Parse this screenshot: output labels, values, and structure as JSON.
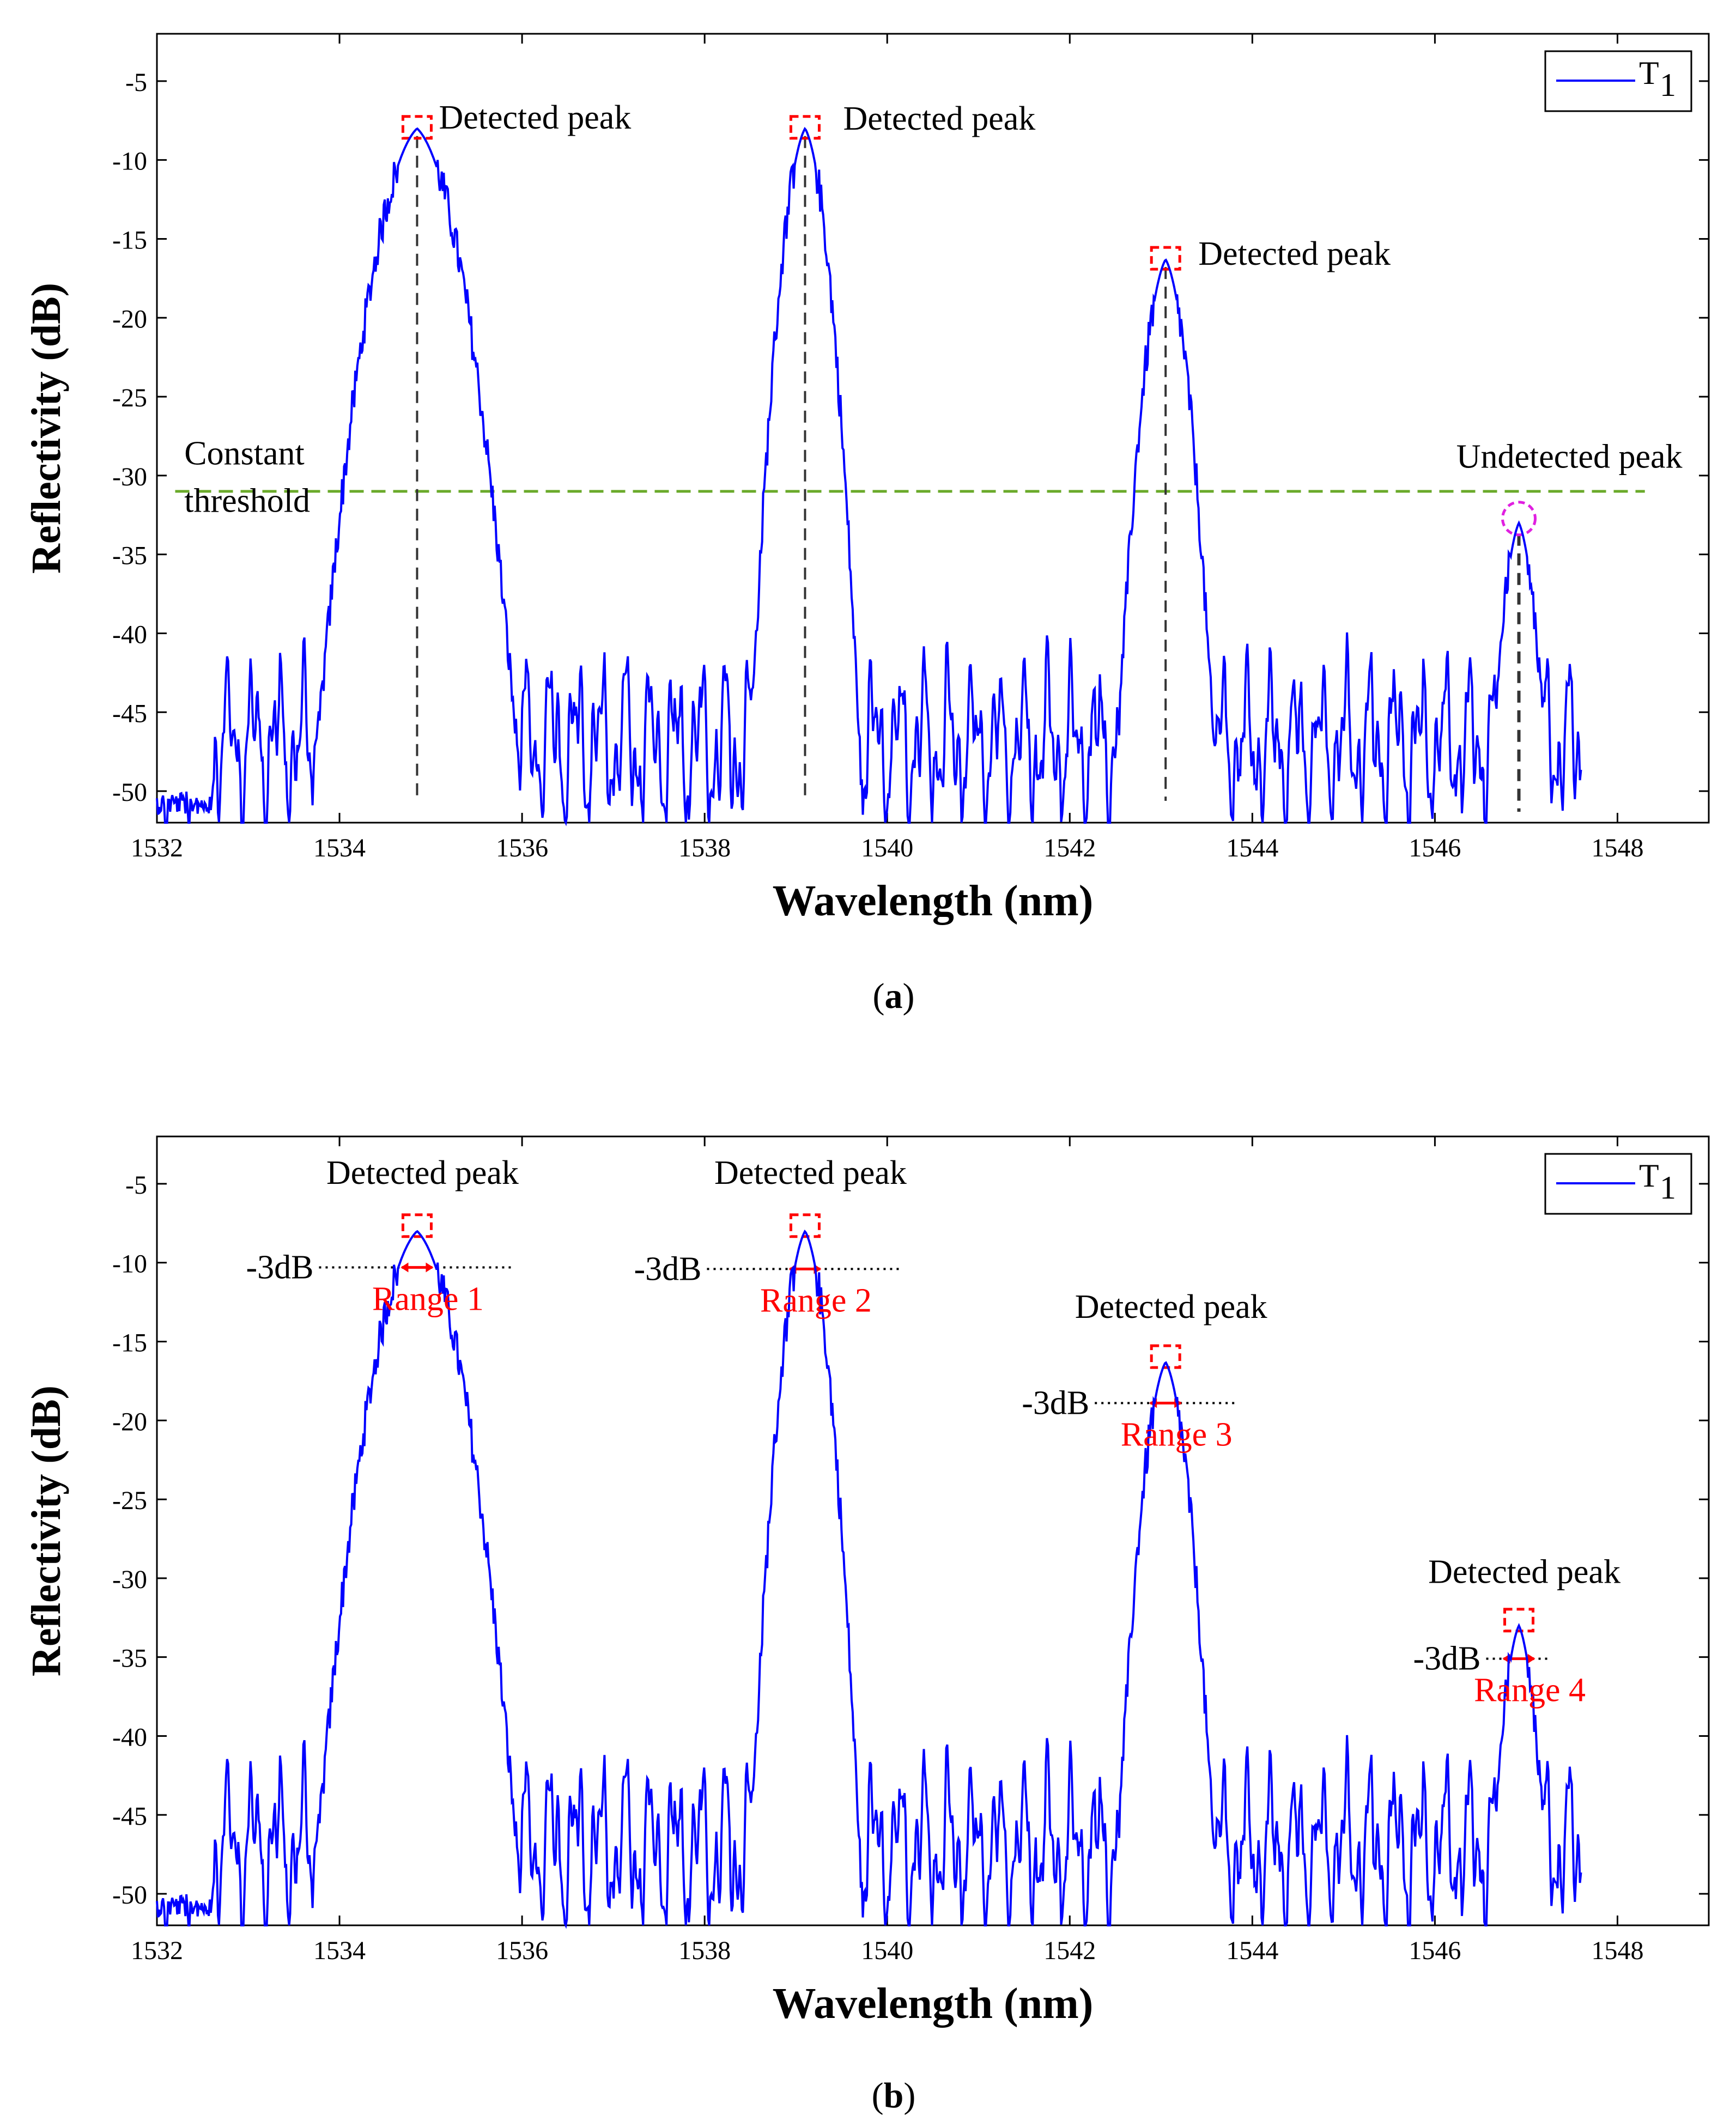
{
  "chart_data": [
    {
      "type": "line",
      "panel_label": "a",
      "xlabel": "Wavelength (nm)",
      "ylabel": "Reflectivity (dB)",
      "xlim": [
        1532,
        1549
      ],
      "ylim": [
        -52,
        -2
      ],
      "xticks": [
        1532,
        1534,
        1536,
        1538,
        1540,
        1542,
        1544,
        1546,
        1548
      ],
      "yticks": [
        -5,
        -10,
        -15,
        -20,
        -25,
        -30,
        -35,
        -40,
        -45,
        -50
      ],
      "legend": {
        "label": "T",
        "subscript": "1",
        "position": "top-right"
      },
      "colors": {
        "series": "#0000ff",
        "threshold": "#6aaa2a",
        "peak_box": "#ff0000",
        "undetected": "#e020e0",
        "marker_line": "#000000"
      },
      "series": [
        {
          "name": "T1",
          "peaks": [
            {
              "x": 1534.85,
              "y": -8.0,
              "width": 0.55
            },
            {
              "x": 1539.1,
              "y": -8.0,
              "width": 0.3
            },
            {
              "x": 1543.05,
              "y": -16.3,
              "width": 0.3
            },
            {
              "x": 1546.92,
              "y": -33.0,
              "width": 0.25
            }
          ],
          "noise_floor": -47
        }
      ],
      "threshold": {
        "value": -31,
        "label_lines": [
          "Constant",
          "threshold"
        ]
      },
      "detected_peaks": [
        {
          "x": 1534.85,
          "y": -8.0,
          "label": "Detected peak"
        },
        {
          "x": 1539.1,
          "y": -8.0,
          "label": "Detected peak"
        },
        {
          "x": 1543.05,
          "y": -16.3,
          "label": "Detected peak"
        }
      ],
      "undetected_peak": {
        "x": 1546.92,
        "y": -33.0,
        "label": "Undetected peak"
      }
    },
    {
      "type": "line",
      "panel_label": "b",
      "xlabel": "Wavelength (nm)",
      "ylabel": "Reflectivity (dB)",
      "xlim": [
        1532,
        1549
      ],
      "ylim": [
        -52,
        -2
      ],
      "xticks": [
        1532,
        1534,
        1536,
        1538,
        1540,
        1542,
        1544,
        1546,
        1548
      ],
      "yticks": [
        -5,
        -10,
        -15,
        -20,
        -25,
        -30,
        -35,
        -40,
        -45,
        -50
      ],
      "legend": {
        "label": "T",
        "subscript": "1",
        "position": "top-right"
      },
      "colors": {
        "series": "#0000ff",
        "peak_box": "#ff0000",
        "range": "#ff0000",
        "dotted": "#000000"
      },
      "detected_peaks": [
        {
          "x": 1534.85,
          "y": -8.0,
          "label": "Detected peak",
          "level_label": "-3dB",
          "range_label": "Range 1",
          "level_y": -10.3
        },
        {
          "x": 1539.1,
          "y": -8.0,
          "label": "Detected peak",
          "level_label": "-3dB",
          "range_label": "Range 2",
          "level_y": -10.4
        },
        {
          "x": 1543.05,
          "y": -16.3,
          "label": "Detected peak",
          "level_label": "-3dB",
          "range_label": "Range 3",
          "level_y": -18.9
        },
        {
          "x": 1546.92,
          "y": -33.0,
          "label": "Detected peak",
          "level_label": "-3dB",
          "range_label": "Range 4",
          "level_y": -35.1
        }
      ]
    }
  ],
  "panel_labels": {
    "a": "(a)",
    "b": "(b)"
  }
}
